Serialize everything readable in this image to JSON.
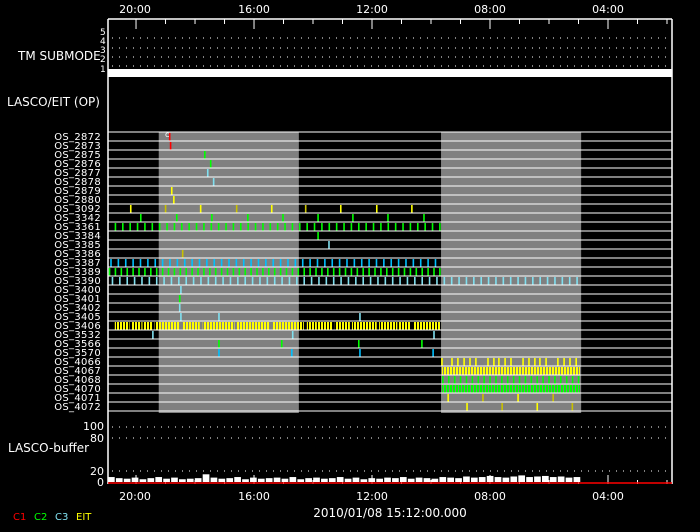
{
  "colors": {
    "c1": "#ff0000",
    "c2": "#00ff00",
    "c3": "#80e0f0",
    "c3b": "#00c0ff",
    "eit": "#ffff00",
    "eit_dim": "#c8c000",
    "gray_band": "#808080",
    "background": "#000000",
    "foreground": "#ffffff"
  },
  "time_axis": {
    "xlim_hours": [
      20.95,
      1.83
    ],
    "major_labels": [
      {
        "hour": 20,
        "label": "20:00"
      },
      {
        "hour": 16,
        "label": "16:00"
      },
      {
        "hour": 12,
        "label": "12:00"
      },
      {
        "hour": 8,
        "label": "08:00"
      },
      {
        "hour": 4,
        "label": "04:00"
      }
    ],
    "minor_tick_hours": [
      19,
      18,
      17,
      15,
      14,
      13,
      11,
      10,
      9,
      7,
      6,
      5,
      3,
      2
    ],
    "date_label": "2010/01/08 15:12:00.000"
  },
  "gray_bands": [
    [
      19.23,
      14.48
    ],
    [
      9.66,
      4.91
    ]
  ],
  "tm_submode": {
    "label": "TM SUBMODE",
    "levels": [
      "5",
      "4",
      "3",
      "2",
      "1"
    ],
    "current_level": 1
  },
  "section_label": "LASCO/EIT (OP)",
  "annotation": "c",
  "rows": [
    {
      "label": "OS_2872",
      "events": [
        {
          "c": "c1",
          "t": [
            18.86
          ]
        }
      ]
    },
    {
      "label": "OS_2873",
      "events": [
        {
          "c": "c1",
          "t": [
            18.83
          ]
        }
      ]
    },
    {
      "label": "OS_2875",
      "events": [
        {
          "c": "c2",
          "t": [
            17.67
          ]
        }
      ]
    },
    {
      "label": "OS_2876",
      "events": [
        {
          "c": "c2",
          "t": [
            17.47
          ]
        }
      ]
    },
    {
      "label": "OS_2877",
      "events": [
        {
          "c": "c3",
          "t": [
            17.57
          ]
        }
      ]
    },
    {
      "label": "OS_2878",
      "events": [
        {
          "c": "c3",
          "t": [
            17.37
          ]
        }
      ]
    },
    {
      "label": "OS_2879",
      "events": [
        {
          "c": "eit",
          "t": [
            18.79
          ]
        }
      ]
    },
    {
      "label": "OS_2880",
      "events": [
        {
          "c": "eit",
          "t": [
            18.72
          ]
        }
      ]
    },
    {
      "label": "OS_3092",
      "events": [
        {
          "c": "eit",
          "t": [
            20.18,
            17.81,
            15.4,
            13.06,
            11.84,
            10.65
          ]
        },
        {
          "c": "eit_dim",
          "t": [
            19.0,
            16.59,
            14.25
          ]
        }
      ]
    },
    {
      "label": "OS_3342",
      "events": [
        {
          "c": "c2",
          "t": [
            19.84,
            18.62,
            17.43,
            16.21,
            15.02,
            13.83,
            12.65,
            11.46,
            10.24
          ]
        }
      ]
    },
    {
      "label": "OS_3361",
      "events": [
        {
          "c": "c2",
          "t": [
            20.7,
            20.45,
            20.2,
            19.95,
            19.7,
            19.45,
            19.2,
            18.95,
            18.7,
            18.45,
            18.2,
            17.95,
            17.7,
            17.45,
            17.2,
            16.95,
            16.7,
            16.45,
            16.2,
            15.95,
            15.7,
            15.45,
            15.2,
            14.95,
            14.7,
            14.45,
            14.2,
            13.95,
            13.7,
            13.45,
            13.2,
            12.95,
            12.7,
            12.45,
            12.2,
            11.95,
            11.7,
            11.45,
            11.2,
            10.95,
            10.7,
            10.45,
            10.2,
            9.95,
            9.7
          ]
        }
      ]
    },
    {
      "label": "OS_3384",
      "events": [
        {
          "c": "c2",
          "t": [
            13.83
          ]
        }
      ]
    },
    {
      "label": "OS_3385",
      "events": [
        {
          "c": "c3",
          "t": [
            13.46
          ]
        }
      ]
    },
    {
      "label": "OS_3386",
      "events": [
        {
          "c": "eit_dim",
          "t": [
            18.42
          ]
        }
      ]
    },
    {
      "label": "OS_3387",
      "events": [
        {
          "c": "c3b",
          "t": [
            20.85,
            20.6,
            20.35,
            20.1,
            19.85,
            19.6,
            19.35,
            19.1,
            18.85,
            18.6,
            18.35,
            18.1,
            17.85,
            17.6,
            17.35,
            17.1,
            16.85,
            16.6,
            16.35,
            16.1,
            15.85,
            15.6,
            15.35,
            15.1,
            14.85,
            14.6,
            14.35,
            14.1,
            13.85,
            13.6,
            13.35,
            13.1,
            12.85,
            12.6,
            12.35,
            12.1,
            11.85,
            11.6,
            11.35,
            11.1,
            10.85,
            10.6,
            10.35,
            10.1,
            9.85
          ]
        }
      ]
    },
    {
      "label": "OS_3389",
      "events": [
        {
          "c": "c2",
          "t": [
            20.9,
            20.7,
            20.5,
            20.3,
            20.1,
            19.9,
            19.7,
            19.5,
            19.3,
            19.1,
            18.9,
            18.7,
            18.5,
            18.3,
            18.1,
            17.9,
            17.7,
            17.5,
            17.3,
            17.1,
            16.9,
            16.7,
            16.5,
            16.3,
            16.1,
            15.9,
            15.7,
            15.5,
            15.3,
            15.1,
            14.9,
            14.7,
            14.5,
            14.3,
            14.1,
            13.9,
            13.7,
            13.5,
            13.3,
            13.1,
            12.9,
            12.7,
            12.5,
            12.3,
            12.1,
            11.9,
            11.7,
            11.5,
            11.3,
            11.1,
            10.9,
            10.7,
            10.5,
            10.3,
            10.1,
            9.9,
            9.7
          ]
        }
      ]
    },
    {
      "label": "OS_3390",
      "events": [
        {
          "c": "c3",
          "t": [
            20.8,
            20.55,
            20.3,
            20.05,
            19.8,
            19.55,
            19.3,
            19.05,
            18.8,
            18.55,
            18.3,
            18.05,
            17.8,
            17.55,
            17.3,
            17.05,
            16.8,
            16.55,
            16.3,
            16.05,
            15.8,
            15.55,
            15.3,
            15.05,
            14.8,
            14.55,
            14.3,
            14.05,
            13.8,
            13.55,
            13.3,
            13.05,
            12.8,
            12.55,
            12.3,
            12.05,
            11.8,
            11.55,
            11.3,
            11.05,
            10.8,
            10.55,
            10.3,
            10.05,
            9.8,
            9.55,
            9.3,
            9.05,
            8.8,
            8.55,
            8.3,
            8.05,
            7.8,
            7.55,
            7.3,
            7.05,
            6.8,
            6.55,
            6.3,
            6.05,
            5.8,
            5.55,
            5.3,
            5.05
          ]
        }
      ]
    },
    {
      "label": "OS_3400",
      "events": [
        {
          "c": "c3",
          "t": [
            18.48
          ]
        }
      ]
    },
    {
      "label": "OS_3401",
      "events": [
        {
          "c": "c2",
          "t": [
            18.52
          ]
        }
      ]
    },
    {
      "label": "OS_3402",
      "events": [
        {
          "c": "c3",
          "t": [
            18.52
          ]
        }
      ]
    },
    {
      "label": "OS_3405",
      "events": [
        {
          "c": "c3",
          "t": [
            18.48,
            17.19,
            12.41
          ]
        }
      ]
    },
    {
      "label": "OS_3406",
      "intervals": [
        {
          "c": "eit",
          "spans": [
            [
              20.72,
              20.22
            ],
            [
              20.15,
              19.81
            ],
            [
              19.78,
              19.44
            ],
            [
              19.37,
              18.52
            ],
            [
              18.42,
              17.84
            ],
            [
              17.74,
              16.66
            ],
            [
              16.59,
              15.47
            ],
            [
              15.37,
              14.31
            ],
            [
              14.21,
              13.87
            ],
            [
              13.84,
              13.33
            ],
            [
              13.26,
              12.75
            ],
            [
              12.68,
              11.84
            ],
            [
              11.76,
              11.14
            ],
            [
              11.1,
              10.68
            ],
            [
              10.58,
              9.66
            ]
          ]
        }
      ]
    },
    {
      "label": "OS_3532",
      "events": [
        {
          "c": "c3",
          "t": [
            19.43,
            14.69,
            9.9
          ]
        }
      ]
    },
    {
      "label": "OS_3566",
      "events": [
        {
          "c": "c2",
          "t": [
            17.19,
            15.06,
            12.45,
            10.31
          ]
        }
      ]
    },
    {
      "label": "OS_3570",
      "events": [
        {
          "c": "c3b",
          "t": [
            17.19,
            14.72,
            12.41,
            9.93
          ]
        }
      ]
    },
    {
      "label": "OS_4066",
      "events": [
        {
          "c": "eit",
          "t": [
            9.63,
            9.29,
            9.09,
            8.88,
            8.68,
            8.48,
            8.07,
            7.87,
            7.7,
            7.49,
            7.29,
            6.88,
            6.68,
            6.48,
            6.31,
            6.1,
            5.7,
            5.49,
            5.29,
            5.08
          ]
        }
      ]
    },
    {
      "label": "OS_4067",
      "intervals": [
        {
          "c": "eit",
          "spans": [
            [
              9.63,
              4.95
            ]
          ]
        }
      ]
    },
    {
      "label": "OS_4068",
      "events": [
        {
          "c": "c2",
          "t": [
            9.6,
            9.4,
            9.2,
            9.0,
            8.8,
            8.6,
            8.4,
            8.2,
            8.0,
            7.8,
            7.6,
            7.4,
            7.2,
            7.0,
            6.8,
            6.6,
            6.4,
            6.2,
            6.0,
            5.8,
            5.6,
            5.4,
            5.2,
            5.0
          ]
        }
      ]
    },
    {
      "label": "OS_4070",
      "intervals": [
        {
          "c": "c2",
          "spans": [
            [
              9.63,
              4.95
            ]
          ]
        }
      ]
    },
    {
      "label": "OS_4071",
      "events": [
        {
          "c": "eit",
          "t": [
            9.42,
            7.05
          ]
        },
        {
          "c": "eit_dim",
          "t": [
            8.24,
            5.86
          ]
        }
      ]
    },
    {
      "label": "OS_4072",
      "events": [
        {
          "c": "eit",
          "t": [
            8.78,
            6.4
          ]
        },
        {
          "c": "eit_dim",
          "t": [
            7.59,
            5.21
          ]
        }
      ]
    }
  ],
  "buffer": {
    "label": "LASCO-buffer",
    "scale_labels": [
      "100",
      "80",
      "20",
      "0"
    ],
    "range_hours": [
      20.95,
      4.9
    ],
    "fill_percent": [
      9,
      7,
      6,
      8,
      5,
      7,
      9,
      6,
      8,
      5,
      6,
      7,
      14,
      8,
      6,
      7,
      9,
      5,
      8,
      6,
      7,
      8,
      6,
      9,
      5,
      7,
      8,
      6,
      7,
      9,
      6,
      8,
      5,
      7,
      6,
      8,
      7,
      9,
      6,
      8,
      7,
      6,
      9,
      8,
      7,
      10,
      8,
      9,
      11,
      9,
      8,
      10,
      12,
      9,
      10,
      11,
      9,
      10,
      8,
      9
    ]
  },
  "legend": [
    {
      "label": "C1",
      "c": "c1"
    },
    {
      "label": "C2",
      "c": "c2"
    },
    {
      "label": "C3",
      "c": "c3"
    },
    {
      "label": "EIT",
      "c": "eit"
    }
  ]
}
